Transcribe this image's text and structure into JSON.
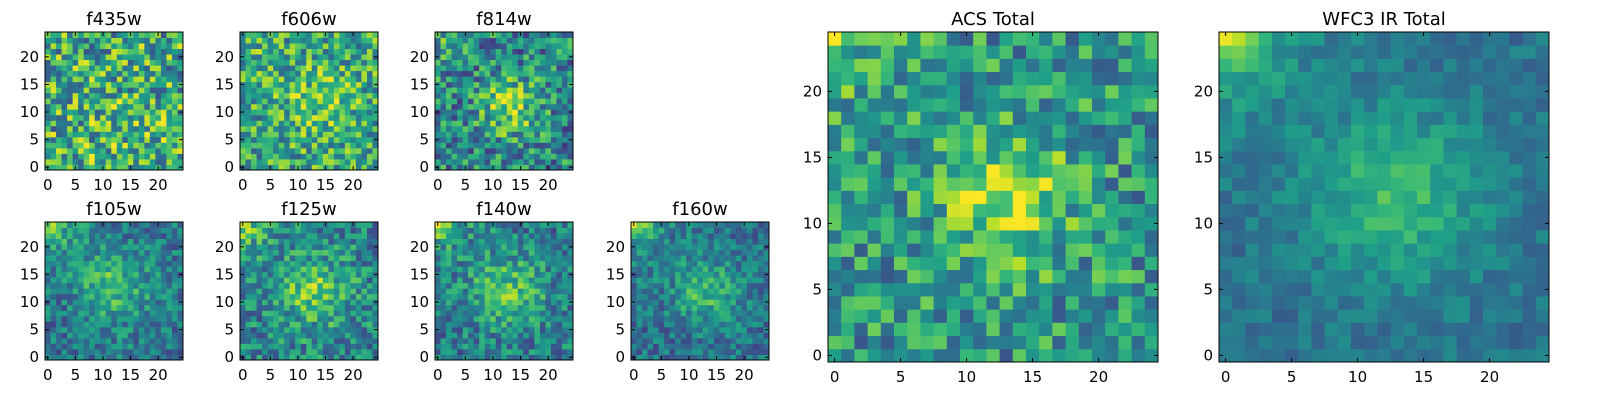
{
  "colormap": {
    "name": "viridis",
    "stops": [
      "#440154",
      "#482878",
      "#3e4989",
      "#31688e",
      "#26828e",
      "#1f9e89",
      "#35b779",
      "#6ece58",
      "#b5de2b",
      "#fde725"
    ]
  },
  "chart_data": [
    {
      "type": "heatmap",
      "title": "f435w",
      "grid_size": 25,
      "xticks": [
        "0",
        "5",
        "10",
        "15",
        "20"
      ],
      "yticks": [
        "0",
        "5",
        "10",
        "15",
        "20"
      ],
      "xlim": [
        -0.5,
        24.5
      ],
      "ylim": [
        -0.5,
        24.5
      ],
      "seed": 11,
      "base": 0.62,
      "noise": 0.36,
      "blob": {
        "x": 13,
        "y": 7,
        "amp": 0.05,
        "sigma": 5
      },
      "corner": 0.0
    },
    {
      "type": "heatmap",
      "title": "f606w",
      "grid_size": 25,
      "xticks": [
        "0",
        "5",
        "10",
        "15",
        "20"
      ],
      "yticks": [
        "0",
        "5",
        "10",
        "15",
        "20"
      ],
      "xlim": [
        -0.5,
        24.5
      ],
      "ylim": [
        -0.5,
        24.5
      ],
      "seed": 23,
      "base": 0.6,
      "noise": 0.3,
      "blob": {
        "x": 14,
        "y": 12,
        "amp": 0.18,
        "sigma": 4
      },
      "corner": 0.08
    },
    {
      "type": "heatmap",
      "title": "f814w",
      "grid_size": 25,
      "xticks": [
        "0",
        "5",
        "10",
        "15",
        "20"
      ],
      "yticks": [
        "0",
        "5",
        "10",
        "15",
        "20"
      ],
      "xlim": [
        -0.5,
        24.5
      ],
      "ylim": [
        -0.5,
        24.5
      ],
      "seed": 37,
      "base": 0.46,
      "noise": 0.3,
      "blob": {
        "x": 13,
        "y": 11,
        "amp": 0.38,
        "sigma": 3.5
      },
      "corner": 0.25
    },
    {
      "type": "heatmap",
      "title": "f105w",
      "grid_size": 25,
      "xticks": [
        "0",
        "5",
        "10",
        "15",
        "20"
      ],
      "yticks": [
        "0",
        "5",
        "10",
        "15",
        "20"
      ],
      "xlim": [
        -0.5,
        24.5
      ],
      "ylim": [
        -0.5,
        24.5
      ],
      "seed": 41,
      "base": 0.4,
      "noise": 0.2,
      "blob": {
        "x": 12,
        "y": 13,
        "amp": 0.28,
        "sigma": 4.5
      },
      "corner": 0.5
    },
    {
      "type": "heatmap",
      "title": "f125w",
      "grid_size": 25,
      "xticks": [
        "0",
        "5",
        "10",
        "15",
        "20"
      ],
      "yticks": [
        "0",
        "5",
        "10",
        "15",
        "20"
      ],
      "xlim": [
        -0.5,
        24.5
      ],
      "ylim": [
        -0.5,
        24.5
      ],
      "seed": 53,
      "base": 0.45,
      "noise": 0.24,
      "blob": {
        "x": 13,
        "y": 12,
        "amp": 0.3,
        "sigma": 4.5
      },
      "corner": 0.45
    },
    {
      "type": "heatmap",
      "title": "f140w",
      "grid_size": 25,
      "xticks": [
        "0",
        "5",
        "10",
        "15",
        "20"
      ],
      "yticks": [
        "0",
        "5",
        "10",
        "15",
        "20"
      ],
      "xlim": [
        -0.5,
        24.5
      ],
      "ylim": [
        -0.5,
        24.5
      ],
      "seed": 67,
      "base": 0.42,
      "noise": 0.22,
      "blob": {
        "x": 13,
        "y": 12,
        "amp": 0.3,
        "sigma": 4.5
      },
      "corner": 0.5
    },
    {
      "type": "heatmap",
      "title": "f160w",
      "grid_size": 25,
      "xticks": [
        "0",
        "5",
        "10",
        "15",
        "20"
      ],
      "yticks": [
        "0",
        "5",
        "10",
        "15",
        "20"
      ],
      "xlim": [
        -0.5,
        24.5
      ],
      "ylim": [
        -0.5,
        24.5
      ],
      "seed": 79,
      "base": 0.38,
      "noise": 0.18,
      "blob": {
        "x": 13,
        "y": 12,
        "amp": 0.3,
        "sigma": 4
      },
      "corner": 0.55
    },
    {
      "type": "heatmap",
      "title": "ACS Total",
      "grid_size": 25,
      "xticks": [
        "0",
        "5",
        "10",
        "15",
        "20"
      ],
      "yticks": [
        "0",
        "5",
        "10",
        "15",
        "20"
      ],
      "xlim": [
        -0.5,
        24.5
      ],
      "ylim": [
        -0.5,
        24.5
      ],
      "seed": 97,
      "base": 0.52,
      "noise": 0.26,
      "blob": {
        "x": 13,
        "y": 12,
        "amp": 0.35,
        "sigma": 3.5
      },
      "corner": 0.3
    },
    {
      "type": "heatmap",
      "title": "WFC3 IR Total",
      "grid_size": 25,
      "xticks": [
        "0",
        "5",
        "10",
        "15",
        "20"
      ],
      "yticks": [
        "0",
        "5",
        "10",
        "15",
        "20"
      ],
      "xlim": [
        -0.5,
        24.5
      ],
      "ylim": [
        -0.5,
        24.5
      ],
      "seed": 113,
      "base": 0.38,
      "noise": 0.1,
      "blob": {
        "x": 13,
        "y": 12,
        "amp": 0.3,
        "sigma": 4.5
      },
      "corner": 0.6
    }
  ]
}
